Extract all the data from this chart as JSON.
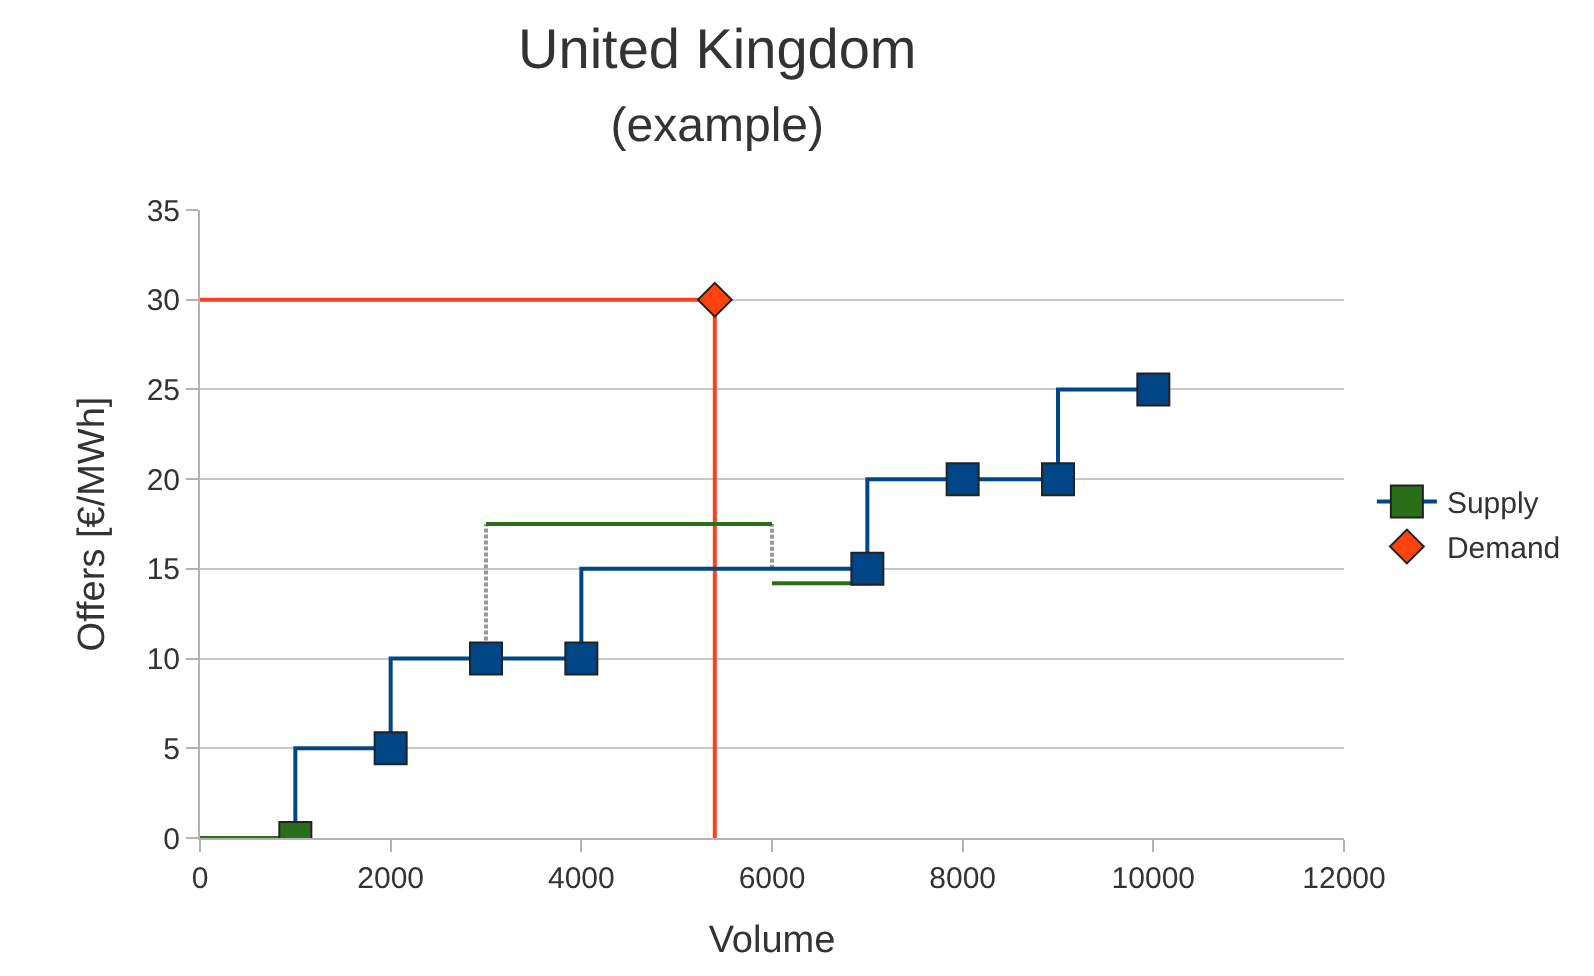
{
  "chart_data": {
    "type": "step",
    "title": "United Kingdom",
    "subtitle": "(example)",
    "xlabel": "Volume",
    "ylabel": "Offers [€/MWh]",
    "xlim": [
      0,
      12000
    ],
    "xticks": [
      0,
      2000,
      4000,
      6000,
      8000,
      10000,
      12000
    ],
    "ylim": [
      0,
      35
    ],
    "yticks": [
      0,
      5,
      10,
      15,
      20,
      25,
      30,
      35
    ],
    "grid": "y",
    "legend": "right",
    "series": [
      {
        "type": "line",
        "color": "#2a6e1a",
        "x": [
          0,
          1000
        ],
        "values": [
          0,
          0
        ]
      },
      {
        "type": "line",
        "color": "#ff4020",
        "x": [
          0,
          5400
        ],
        "values": [
          30,
          30
        ]
      },
      {
        "type": "line",
        "color": "#ff4020",
        "x": [
          5400,
          5400
        ],
        "values": [
          30,
          0
        ]
      },
      {
        "type": "line",
        "color": "#999999",
        "x": [
          3000,
          3000
        ],
        "values": [
          10,
          17.5
        ],
        "line_style": "dotted"
      },
      {
        "type": "line",
        "color": "#999999",
        "x": [
          6000,
          6000
        ],
        "values": [
          15,
          17.5
        ],
        "line_style": "dotted"
      },
      {
        "type": "line",
        "color": "#2a6e1a",
        "x": [
          3000,
          6000
        ],
        "values": [
          17.5,
          17.5
        ]
      },
      {
        "type": "line",
        "color": "#2a6e1a",
        "x": [
          6000,
          7000
        ],
        "values": [
          14.2,
          14.2
        ]
      },
      {
        "name": "Supply",
        "color": "#004586",
        "colors": [
          "#2a6e1a",
          "#004586",
          "#004586",
          "#004586",
          "#004586",
          "#004586",
          "#004586",
          "#004586"
        ],
        "x": [
          1000,
          2000,
          3000,
          4000,
          7000,
          8000,
          9000,
          10000
        ],
        "values": [
          0,
          5,
          10,
          10,
          15,
          20,
          20,
          25
        ],
        "marker": "square"
      },
      {
        "type": "scatter",
        "name": "Demand",
        "color": "#ff420e",
        "x": [
          5400
        ],
        "values": [
          30
        ],
        "marker": "diamond"
      }
    ]
  }
}
